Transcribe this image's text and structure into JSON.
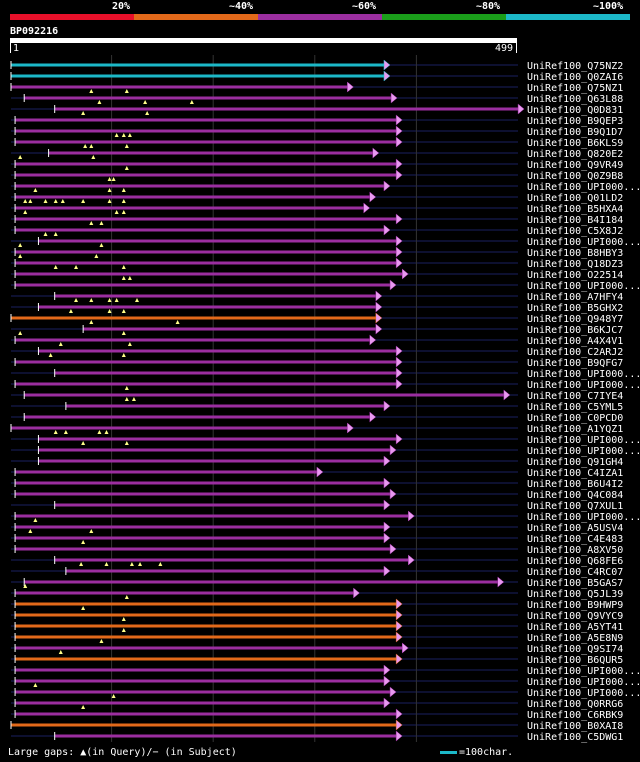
{
  "legend": {
    "labels": [
      "20%",
      "~40%",
      "~60%",
      "~80%",
      "~100%"
    ],
    "colors": [
      "#e8102a",
      "#e2691a",
      "#9b2ea0",
      "#1a9e1a",
      "#1cb8c8"
    ]
  },
  "query": {
    "id": "BP092216",
    "start": "1",
    "end": "499",
    "length": 499
  },
  "hits": [
    {
      "label": "UniRef100_Q75NZ2",
      "start": 1,
      "end": 373,
      "color": "#1cb8c8",
      "gaps": []
    },
    {
      "label": "UniRef100_Q0ZAI6",
      "start": 1,
      "end": 373,
      "color": "#1cb8c8",
      "gaps": []
    },
    {
      "label": "UniRef100_Q75NZ1",
      "start": 1,
      "end": 337,
      "color": "#9b2ea0",
      "gaps": []
    },
    {
      "label": "UniRef100_Q63L88",
      "start": 14,
      "end": 380,
      "color": "#9b2ea0",
      "gaps": [
        80,
        115
      ]
    },
    {
      "label": "UniRef100_Q0D831",
      "start": 44,
      "end": 505,
      "color": "#9b2ea0",
      "gaps": [
        88,
        133,
        179
      ]
    },
    {
      "label": "UniRef100_B9QEP3",
      "start": 5,
      "end": 385,
      "color": "#9b2ea0",
      "gaps": [
        72,
        135
      ]
    },
    {
      "label": "UniRef100_B9Q1D7",
      "start": 5,
      "end": 385,
      "color": "#9b2ea0",
      "gaps": []
    },
    {
      "label": "UniRef100_B6KLS9",
      "start": 5,
      "end": 385,
      "color": "#9b2ea0",
      "gaps": [
        105,
        112,
        118
      ]
    },
    {
      "label": "UniRef100_Q820E2",
      "start": 38,
      "end": 362,
      "color": "#9b2ea0",
      "gaps": [
        74,
        80,
        115
      ]
    },
    {
      "label": "UniRef100_Q9VR49",
      "start": 5,
      "end": 385,
      "color": "#9b2ea0",
      "gaps": [
        10,
        82
      ]
    },
    {
      "label": "UniRef100_Q0Z9B8",
      "start": 5,
      "end": 385,
      "color": "#9b2ea0",
      "gaps": [
        115
      ]
    },
    {
      "label": "UniRef100_UPI000...",
      "start": 5,
      "end": 373,
      "color": "#9b2ea0",
      "gaps": [
        98,
        102
      ]
    },
    {
      "label": "UniRef100_Q01LD2",
      "start": 5,
      "end": 359,
      "color": "#9b2ea0",
      "gaps": [
        25,
        98,
        112
      ]
    },
    {
      "label": "UniRef100_B5HXA4",
      "start": 5,
      "end": 353,
      "color": "#9b2ea0",
      "gaps": [
        15,
        20,
        35,
        45,
        52,
        72,
        98,
        112
      ]
    },
    {
      "label": "UniRef100_B4I184",
      "start": 5,
      "end": 385,
      "color": "#9b2ea0",
      "gaps": [
        15,
        105,
        112
      ]
    },
    {
      "label": "UniRef100_C5X8J2",
      "start": 5,
      "end": 373,
      "color": "#9b2ea0",
      "gaps": [
        80,
        90
      ]
    },
    {
      "label": "UniRef100_UPI000...",
      "start": 28,
      "end": 385,
      "color": "#9b2ea0",
      "gaps": [
        35,
        45
      ]
    },
    {
      "label": "UniRef100_B8HBY3",
      "start": 5,
      "end": 385,
      "color": "#9b2ea0",
      "gaps": [
        10,
        90
      ]
    },
    {
      "label": "UniRef100_Q18DZ3",
      "start": 5,
      "end": 385,
      "color": "#9b2ea0",
      "gaps": [
        10,
        85
      ]
    },
    {
      "label": "UniRef100_O22514",
      "start": 5,
      "end": 391,
      "color": "#9b2ea0",
      "gaps": [
        45,
        65,
        112
      ]
    },
    {
      "label": "UniRef100_UPI000...",
      "start": 5,
      "end": 379,
      "color": "#9b2ea0",
      "gaps": [
        112,
        118
      ]
    },
    {
      "label": "UniRef100_A7HFY4",
      "start": 44,
      "end": 365,
      "color": "#9b2ea0",
      "gaps": []
    },
    {
      "label": "UniRef100_B5GHX2",
      "start": 28,
      "end": 365,
      "color": "#9b2ea0",
      "gaps": [
        65,
        80,
        98,
        105,
        125
      ]
    },
    {
      "label": "UniRef100_Q948Y7",
      "start": 1,
      "end": 365,
      "color": "#e2691a",
      "gaps": [
        60,
        98,
        112
      ]
    },
    {
      "label": "UniRef100_B6KJC7",
      "start": 72,
      "end": 365,
      "color": "#9b2ea0",
      "gaps": [
        80,
        165
      ]
    },
    {
      "label": "UniRef100_A4X4V1",
      "start": 5,
      "end": 359,
      "color": "#9b2ea0",
      "gaps": [
        10,
        112
      ]
    },
    {
      "label": "UniRef100_C2ARJ2",
      "start": 28,
      "end": 385,
      "color": "#9b2ea0",
      "gaps": [
        50,
        118
      ]
    },
    {
      "label": "UniRef100_B9QFG7",
      "start": 5,
      "end": 385,
      "color": "#9b2ea0",
      "gaps": [
        40,
        112
      ]
    },
    {
      "label": "UniRef100_UPI000...",
      "start": 44,
      "end": 385,
      "color": "#9b2ea0",
      "gaps": []
    },
    {
      "label": "UniRef100_UPI000...",
      "start": 5,
      "end": 385,
      "color": "#9b2ea0",
      "gaps": []
    },
    {
      "label": "UniRef100_C7IYE4",
      "start": 14,
      "end": 491,
      "color": "#9b2ea0",
      "gaps": [
        115
      ]
    },
    {
      "label": "UniRef100_C5YML5",
      "start": 55,
      "end": 373,
      "color": "#9b2ea0",
      "gaps": [
        115,
        122
      ]
    },
    {
      "label": "UniRef100_C0PCD0",
      "start": 14,
      "end": 359,
      "color": "#9b2ea0",
      "gaps": []
    },
    {
      "label": "UniRef100_A1YQZ1",
      "start": 1,
      "end": 337,
      "color": "#9b2ea0",
      "gaps": []
    },
    {
      "label": "UniRef100_UPI000...",
      "start": 28,
      "end": 385,
      "color": "#9b2ea0",
      "gaps": [
        45,
        55,
        88,
        95
      ]
    },
    {
      "label": "UniRef100_UPI000...",
      "start": 28,
      "end": 379,
      "color": "#9b2ea0",
      "gaps": [
        72,
        115
      ]
    },
    {
      "label": "UniRef100_Q91GH4",
      "start": 28,
      "end": 373,
      "color": "#9b2ea0",
      "gaps": []
    },
    {
      "label": "UniRef100_C4IZA1",
      "start": 5,
      "end": 307,
      "color": "#9b2ea0",
      "gaps": []
    },
    {
      "label": "UniRef100_B6U4I2",
      "start": 5,
      "end": 373,
      "color": "#9b2ea0",
      "gaps": []
    },
    {
      "label": "UniRef100_Q4C084",
      "start": 5,
      "end": 379,
      "color": "#9b2ea0",
      "gaps": []
    },
    {
      "label": "UniRef100_Q7XUL1",
      "start": 44,
      "end": 373,
      "color": "#9b2ea0",
      "gaps": []
    },
    {
      "label": "UniRef100_UPI000...",
      "start": 5,
      "end": 397,
      "color": "#9b2ea0",
      "gaps": []
    },
    {
      "label": "UniRef100_A5USV4",
      "start": 5,
      "end": 373,
      "color": "#9b2ea0",
      "gaps": [
        25
      ]
    },
    {
      "label": "UniRef100_C4E483",
      "start": 5,
      "end": 373,
      "color": "#9b2ea0",
      "gaps": [
        20,
        80
      ]
    },
    {
      "label": "UniRef100_A8XV50",
      "start": 5,
      "end": 379,
      "color": "#9b2ea0",
      "gaps": [
        72
      ]
    },
    {
      "label": "UniRef100_Q68FE6",
      "start": 44,
      "end": 397,
      "color": "#9b2ea0",
      "gaps": []
    },
    {
      "label": "UniRef100_C4RC07",
      "start": 55,
      "end": 373,
      "color": "#9b2ea0",
      "gaps": [
        70,
        95,
        120,
        128,
        148
      ]
    },
    {
      "label": "UniRef100_B5GAS7",
      "start": 14,
      "end": 485,
      "color": "#9b2ea0",
      "gaps": []
    },
    {
      "label": "UniRef100_Q5JL39",
      "start": 5,
      "end": 343,
      "color": "#9b2ea0",
      "gaps": [
        15
      ]
    },
    {
      "label": "UniRef100_B9HWP9",
      "start": 5,
      "end": 385,
      "color": "#e2691a",
      "gaps": [
        115
      ]
    },
    {
      "label": "UniRef100_Q9VYC9",
      "start": 5,
      "end": 385,
      "color": "#e2691a",
      "gaps": [
        72
      ]
    },
    {
      "label": "UniRef100_A5YT41",
      "start": 5,
      "end": 385,
      "color": "#e2691a",
      "gaps": [
        112
      ]
    },
    {
      "label": "UniRef100_A5E8N9",
      "start": 5,
      "end": 385,
      "color": "#e2691a",
      "gaps": [
        112
      ]
    },
    {
      "label": "UniRef100_Q9SI74",
      "start": 5,
      "end": 391,
      "color": "#9b2ea0",
      "gaps": [
        90
      ]
    },
    {
      "label": "UniRef100_B6QUR5",
      "start": 5,
      "end": 385,
      "color": "#e2691a",
      "gaps": [
        50
      ]
    },
    {
      "label": "UniRef100_UPI000...",
      "start": 5,
      "end": 373,
      "color": "#9b2ea0",
      "gaps": []
    },
    {
      "label": "UniRef100_UPI000...",
      "start": 5,
      "end": 373,
      "color": "#9b2ea0",
      "gaps": []
    },
    {
      "label": "UniRef100_UPI000...",
      "start": 5,
      "end": 379,
      "color": "#9b2ea0",
      "gaps": [
        25
      ]
    },
    {
      "label": "UniRef100_Q0RRG6",
      "start": 5,
      "end": 373,
      "color": "#9b2ea0",
      "gaps": [
        102
      ]
    },
    {
      "label": "UniRef100_C6RBK9",
      "start": 5,
      "end": 385,
      "color": "#9b2ea0",
      "gaps": [
        72
      ]
    },
    {
      "label": "UniRef100_B0XAI8",
      "start": 1,
      "end": 385,
      "color": "#e2691a",
      "gaps": []
    },
    {
      "label": "UniRef100_C5DWG1",
      "start": 44,
      "end": 385,
      "color": "#9b2ea0",
      "gaps": []
    }
  ],
  "footer": {
    "text": "Large gaps: ▲(in Query)/− (in Subject)",
    "scale_text": "=100char."
  }
}
